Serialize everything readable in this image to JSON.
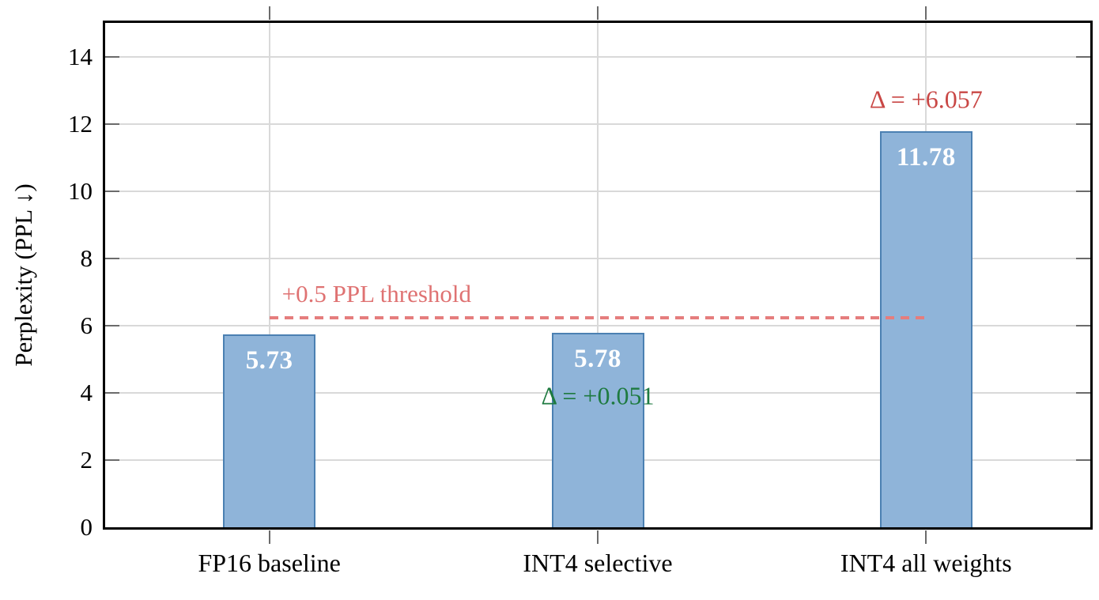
{
  "chart_data": {
    "type": "bar",
    "title": "",
    "xlabel": "",
    "ylabel": "Perplexity (PPL ↓)",
    "categories": [
      "FP16 baseline",
      "INT4 selective",
      "INT4 all weights"
    ],
    "values": [
      5.73,
      5.78,
      11.78
    ],
    "bar_labels": [
      "5.73",
      "5.78",
      "11.78"
    ],
    "ylim": [
      0,
      15
    ],
    "yticks": [
      0,
      2,
      4,
      6,
      8,
      10,
      12,
      14
    ],
    "ytick_labels": [
      "0",
      "2",
      "4",
      "6",
      "8",
      "10",
      "12",
      "14"
    ],
    "grid": "horizontal gridlines at yticks plus vertical gridlines at bar centers",
    "legend": "none",
    "threshold_line": {
      "y": 6.23,
      "label": "+0.5 PPL threshold",
      "style": "dashed",
      "span_from_category_index": 0,
      "span_to_category_index": 2
    },
    "annotations": [
      {
        "text": "Δ = +0.051",
        "category_index": 1,
        "y": 3.9,
        "color": "#1e7a40"
      },
      {
        "text": "Δ = +6.057",
        "category_index": 2,
        "y": 12.72,
        "color": "#c94745"
      }
    ],
    "colors": {
      "bar_fill": "#8fb4d9",
      "bar_border": "#4b80b2",
      "bar_label_text": "#ffffff",
      "grid": "#d9d9d9",
      "axis": "#000000",
      "tick": "#6b6b6b",
      "threshold": "#e57d7d",
      "threshold_label": "#df7272"
    }
  }
}
